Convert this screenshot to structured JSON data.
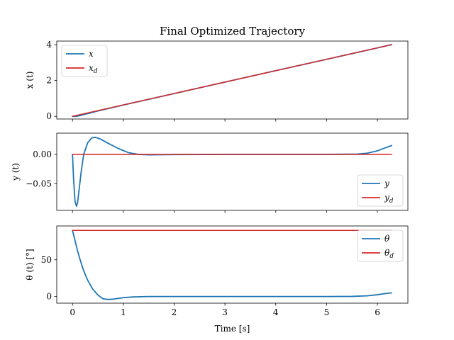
{
  "chart_data": {
    "type": "line",
    "title": "Final Optimized Trajectory",
    "xlabel": "Time [s]",
    "xlim": [
      -0.31,
      6.6
    ],
    "xticks": [
      0,
      1,
      2,
      3,
      4,
      5,
      6
    ],
    "xtick_labels": [
      "0",
      "1",
      "2",
      "3",
      "4",
      "5",
      "6"
    ],
    "grid": false,
    "subplots": [
      {
        "ylabel": "x (t)",
        "ylim": [
          -0.15,
          4.2
        ],
        "yticks": [
          0,
          2,
          4
        ],
        "ytick_labels": [
          "0",
          "2",
          "4"
        ],
        "legend_position": "upper-left",
        "series": [
          {
            "name": "x",
            "color": "#1f77b4",
            "x": [
              0,
              0.05,
              0.1,
              0.15,
              0.2,
              0.3,
              0.5,
              1.0,
              2.0,
              3.0,
              4.0,
              5.0,
              6.0,
              6.28
            ],
            "y": [
              0,
              -0.005,
              0.015,
              0.045,
              0.08,
              0.15,
              0.3,
              0.63,
              1.27,
              1.91,
              2.55,
              3.18,
              3.82,
              4.0
            ]
          },
          {
            "name": "x_d",
            "color": "#d62728",
            "x": [
              0,
              6.28
            ],
            "y": [
              0,
              4.0
            ]
          }
        ]
      },
      {
        "ylabel": "y (t)",
        "ylim": [
          -0.095,
          0.036
        ],
        "yticks": [
          0.0,
          -0.05
        ],
        "ytick_labels": [
          "0.00",
          "−0.05"
        ],
        "legend_position": "lower-right",
        "series": [
          {
            "name": "y",
            "color": "#1f77b4",
            "x": [
              0,
              0.02,
              0.05,
              0.08,
              0.1,
              0.13,
              0.17,
              0.22,
              0.3,
              0.38,
              0.45,
              0.55,
              0.7,
              0.9,
              1.1,
              1.3,
              1.5,
              2.0,
              3.0,
              4.0,
              5.0,
              5.6,
              5.8,
              6.0,
              6.15,
              6.28
            ],
            "y": [
              0,
              -0.04,
              -0.08,
              -0.088,
              -0.082,
              -0.06,
              -0.03,
              0.0,
              0.02,
              0.028,
              0.029,
              0.026,
              0.019,
              0.01,
              0.003,
              0.0,
              -0.0008,
              -0.0003,
              0,
              0,
              0,
              0.0005,
              0.002,
              0.006,
              0.011,
              0.015
            ]
          },
          {
            "name": "y_d",
            "color": "#d62728",
            "x": [
              0,
              6.28
            ],
            "y": [
              0,
              0
            ]
          }
        ]
      },
      {
        "ylabel": "θ (t) [°]",
        "ylim": [
          -9,
          96
        ],
        "yticks": [
          0,
          50
        ],
        "ytick_labels": [
          "0",
          "50"
        ],
        "legend_position": "upper-right",
        "series": [
          {
            "name": "θ",
            "color": "#1f77b4",
            "x": [
              0,
              0.05,
              0.1,
              0.15,
              0.2,
              0.25,
              0.3,
              0.4,
              0.5,
              0.6,
              0.7,
              0.8,
              0.9,
              1.0,
              1.2,
              1.5,
              2.0,
              3.0,
              4.0,
              5.0,
              5.5,
              5.8,
              6.0,
              6.15,
              6.28
            ],
            "y": [
              90,
              76,
              62,
              50,
              39,
              30,
              22,
              10,
              2,
              -3,
              -4,
              -3.5,
              -2.5,
              -1.5,
              -0.5,
              0,
              0,
              0,
              0,
              0,
              0.2,
              1,
              2.5,
              4,
              5
            ]
          },
          {
            "name": "θ_d",
            "color": "#d62728",
            "x": [
              0,
              6.28
            ],
            "y": [
              90,
              90
            ]
          }
        ]
      }
    ]
  }
}
